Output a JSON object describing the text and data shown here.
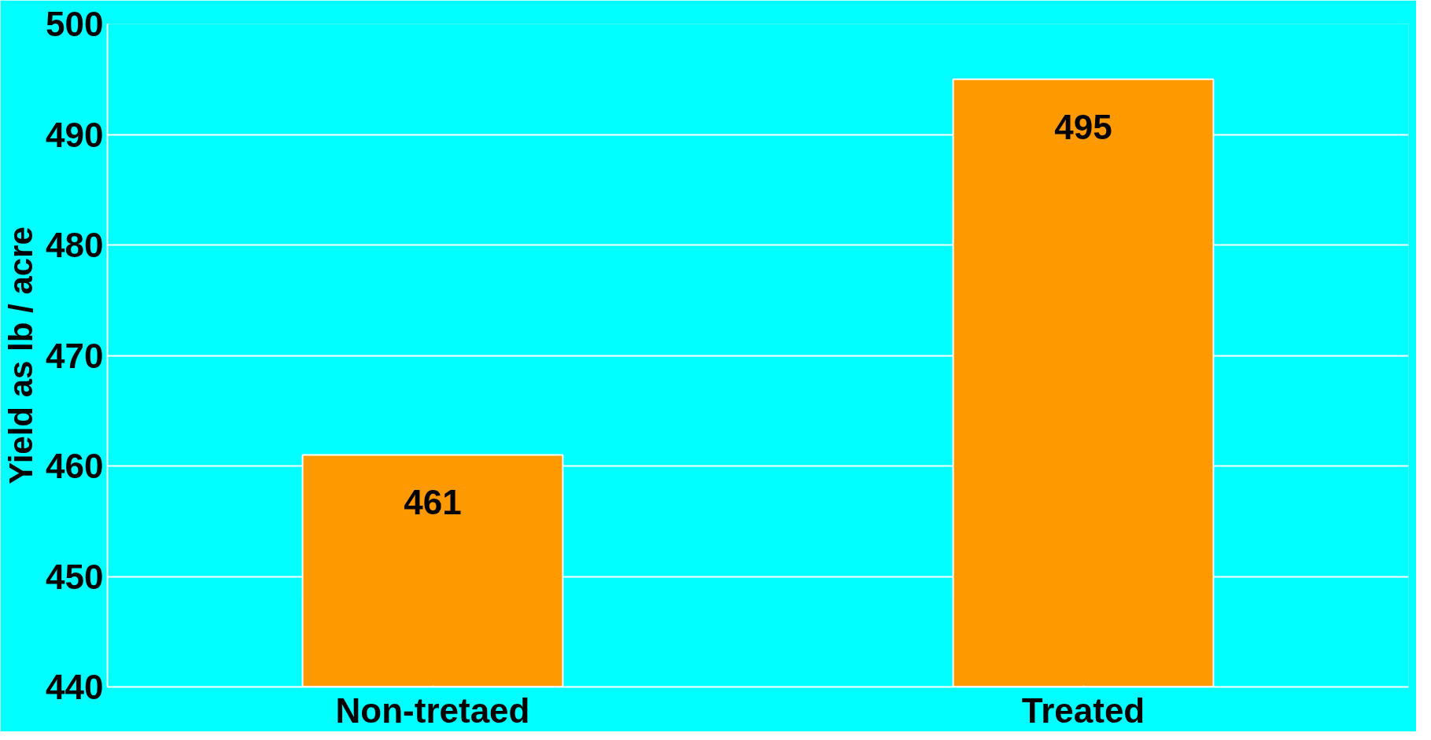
{
  "chart_data": {
    "type": "bar",
    "ylabel": "Yield as lb / acre",
    "categories": [
      "Non-tretaed",
      "Treated"
    ],
    "values": [
      461,
      495
    ],
    "color": "#ff9900",
    "ylim": [
      440,
      500
    ],
    "yticks": [
      440,
      450,
      460,
      470,
      480,
      490,
      500
    ],
    "grid": "y",
    "data_labels": true
  }
}
